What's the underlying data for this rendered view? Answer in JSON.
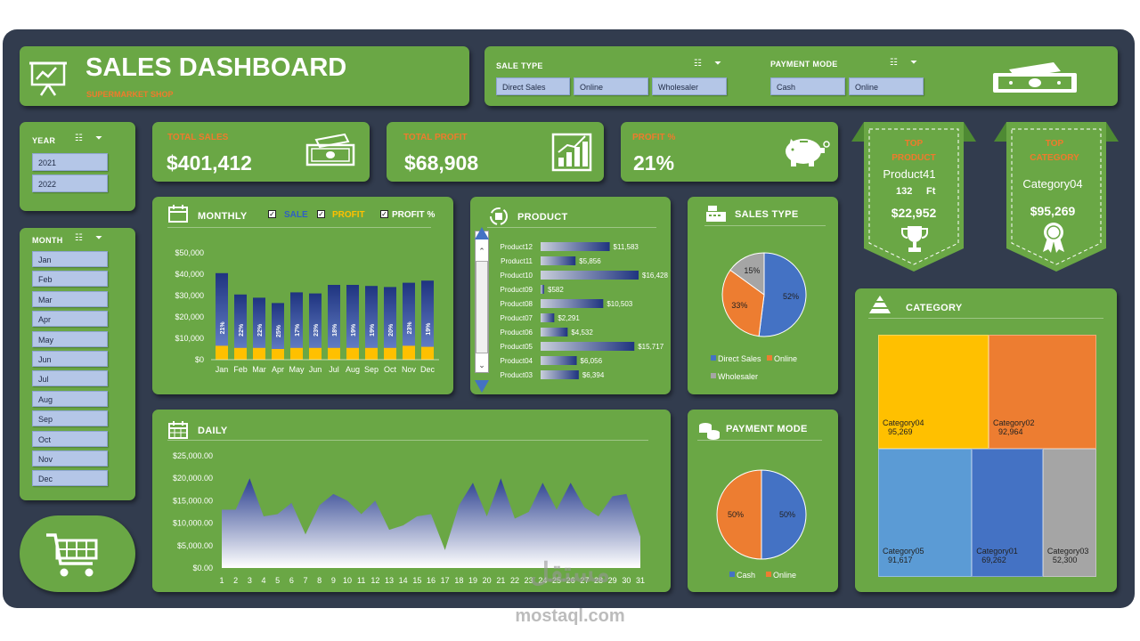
{
  "header": {
    "title": "SALES DASHBOARD",
    "subtitle": "SUPERMARKET SHOP"
  },
  "filters": {
    "sale_type": {
      "title": "SALE TYPE",
      "options": [
        "Direct Sales",
        "Online",
        "Wholesaler"
      ]
    },
    "payment_mode": {
      "title": "PAYMENT MODE",
      "options": [
        "Cash",
        "Online"
      ]
    },
    "year": {
      "title": "YEAR",
      "options": [
        "2021",
        "2022"
      ]
    },
    "month": {
      "title": "MONTH",
      "options": [
        "Jan",
        "Feb",
        "Mar",
        "Apr",
        "May",
        "Jun",
        "Jul",
        "Aug",
        "Sep",
        "Oct",
        "Nov",
        "Dec"
      ]
    }
  },
  "kpis": {
    "total_sales": {
      "label": "TOTAL SALES",
      "value": "$401,412"
    },
    "total_profit": {
      "label": "TOTAL PROFIT",
      "value": "$68,908"
    },
    "profit_pct": {
      "label": "PROFIT %",
      "value": "21%"
    }
  },
  "top_product": {
    "label": "TOP PRODUCT",
    "name": "Product41",
    "qty": "132",
    "unit": "Ft",
    "value": "$22,952"
  },
  "top_category": {
    "label": "TOP CATEGORY",
    "name": "Category04",
    "value": "$95,269"
  },
  "titles": {
    "monthly": "MONTHLY",
    "product": "PRODUCT",
    "sales_type": "SALES TYPE",
    "daily": "DAILY",
    "payment_mode": "PAYMENT MODE",
    "category": "CATEGORY"
  },
  "monthly_legend": {
    "sale": "SALE",
    "profit": "PROFIT",
    "profit_pct": "PROFIT %"
  },
  "colors": {
    "background": "#323c4e",
    "card": "#6aa745",
    "accent_orange": "#f07a2c",
    "sale_bar": "#2e4a9a",
    "profit_bar": "#ffc000",
    "slicer_button": "#b4c6e7"
  },
  "watermark": {
    "arabic": "مستقل",
    "latin": "mostaql.com"
  },
  "chart_data": [
    {
      "id": "monthly",
      "type": "bar",
      "categories": [
        "Jan",
        "Feb",
        "Mar",
        "Apr",
        "May",
        "Jun",
        "Jul",
        "Aug",
        "Sep",
        "Oct",
        "Nov",
        "Dec"
      ],
      "series": [
        {
          "name": "SALE",
          "values": [
            40500,
            30500,
            29000,
            26500,
            31500,
            31000,
            35000,
            35000,
            34500,
            34000,
            36000,
            37000
          ]
        },
        {
          "name": "PROFIT",
          "values": [
            6500,
            5500,
            5500,
            5000,
            5500,
            5500,
            5500,
            5500,
            5500,
            5500,
            6500,
            6000
          ]
        },
        {
          "name": "PROFIT %",
          "labels": [
            "21%",
            "22%",
            "22%",
            "25%",
            "17%",
            "23%",
            "18%",
            "19%",
            "19%",
            "20%",
            "23%",
            "19%"
          ]
        }
      ],
      "y_ticks": [
        "$50,000",
        "$40,000",
        "$30,000",
        "$20,000",
        "$10,000",
        "$0"
      ],
      "ylim": [
        0,
        50000
      ]
    },
    {
      "id": "product",
      "type": "bar",
      "orientation": "horizontal",
      "categories": [
        "Product12",
        "Product11",
        "Product10",
        "Product09",
        "Product08",
        "Product07",
        "Product06",
        "Product05",
        "Product04",
        "Product03"
      ],
      "values": [
        11583,
        5856,
        16428,
        582,
        10503,
        2291,
        4532,
        15717,
        6056,
        6394
      ],
      "value_labels": [
        "$11,583",
        "$5,856",
        "$16,428",
        "$582",
        "$10,503",
        "$2,291",
        "$4,532",
        "$15,717",
        "$6,056",
        "$6,394"
      ]
    },
    {
      "id": "sales_type",
      "type": "pie",
      "slices": [
        {
          "name": "Direct Sales",
          "value": 52,
          "label": "52%",
          "color": "#4472c4"
        },
        {
          "name": "Online",
          "value": 33,
          "label": "33%",
          "color": "#ed7d31"
        },
        {
          "name": "Wholesaler",
          "value": 15,
          "label": "15%",
          "color": "#a5a5a5"
        }
      ]
    },
    {
      "id": "daily",
      "type": "area",
      "x": [
        1,
        2,
        3,
        4,
        5,
        6,
        7,
        8,
        9,
        10,
        11,
        12,
        13,
        14,
        15,
        16,
        17,
        18,
        19,
        20,
        21,
        22,
        23,
        24,
        25,
        26,
        27,
        28,
        29,
        30,
        31
      ],
      "values": [
        13000,
        13000,
        20000,
        11500,
        12000,
        14500,
        7500,
        14000,
        16500,
        15000,
        12000,
        15000,
        8500,
        9500,
        11500,
        12000,
        4000,
        14000,
        19000,
        11500,
        20000,
        11000,
        12500,
        19000,
        13000,
        19000,
        13500,
        11500,
        16000,
        16500,
        7000
      ],
      "y_ticks": [
        "$25,000.00",
        "$20,000.00",
        "$15,000.00",
        "$10,000.00",
        "$5,000.00",
        "$0.00"
      ],
      "ylim": [
        0,
        25000
      ]
    },
    {
      "id": "payment_mode",
      "type": "pie",
      "slices": [
        {
          "name": "Cash",
          "value": 50,
          "label": "50%",
          "color": "#4472c4"
        },
        {
          "name": "Online",
          "value": 50,
          "label": "50%",
          "color": "#ed7d31"
        }
      ]
    },
    {
      "id": "category",
      "type": "treemap",
      "items": [
        {
          "name": "Category04",
          "value": 95269,
          "label": "95,269",
          "color": "#ffc000"
        },
        {
          "name": "Category02",
          "value": 92964,
          "label": "92,964",
          "color": "#ed7d31"
        },
        {
          "name": "Category05",
          "value": 91617,
          "label": "91,617",
          "color": "#5b9bd5"
        },
        {
          "name": "Category01",
          "value": 69262,
          "label": "69,262",
          "color": "#4472c4"
        },
        {
          "name": "Category03",
          "value": 52300,
          "label": "52,300",
          "color": "#a5a5a5"
        }
      ]
    }
  ]
}
